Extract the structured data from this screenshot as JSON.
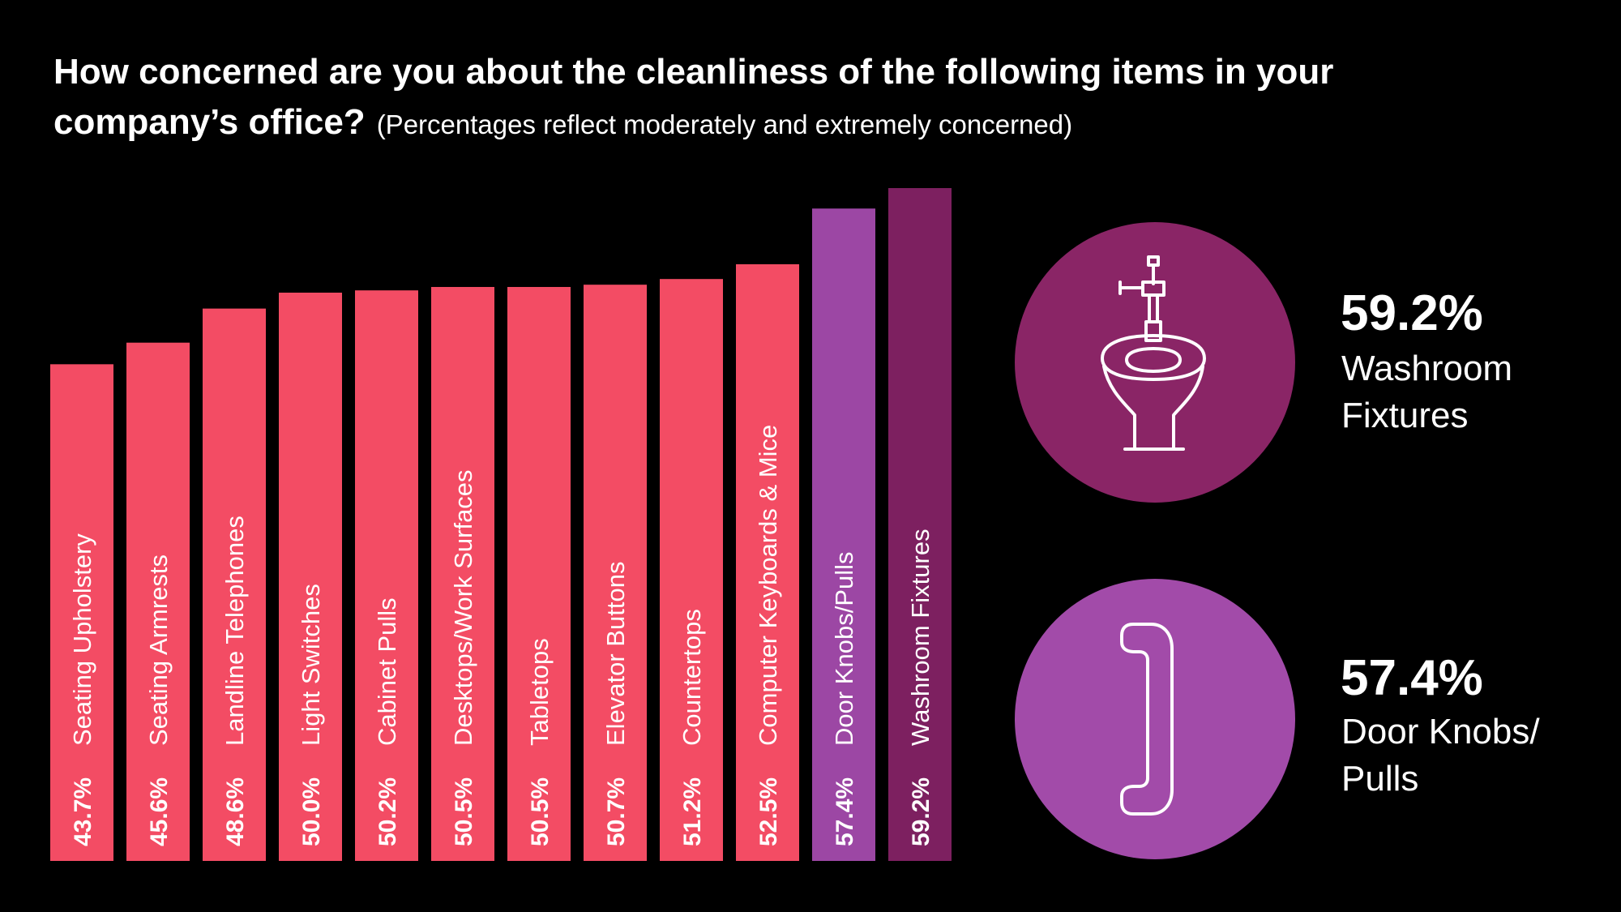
{
  "header": {
    "title": "How concerned are you about the cleanliness of the following items in your company’s office?",
    "subtitle": "(Percentages reflect moderately and extremely concerned)"
  },
  "colors": {
    "background": "#000000",
    "bar_default": "#f34c64",
    "bar_door": "#9c47a4",
    "bar_washroom": "#7d2060",
    "circle_washroom": "#8a2566",
    "circle_door": "#a24ba9"
  },
  "chart_data": {
    "type": "bar",
    "title": "How concerned are you about the cleanliness of the following items in your company’s office?",
    "subtitle": "(Percentages reflect moderately and extremely concerned)",
    "categories": [
      "Seating Upholstery",
      "Seating Armrests",
      "Landline Telephones",
      "Light Switches",
      "Cabinet Pulls",
      "Desktops/Work Surfaces",
      "Tabletops",
      "Elevator Buttons",
      "Countertops",
      "Computer Keyboards & Mice",
      "Door Knobs/Pulls",
      "Washroom Fixtures"
    ],
    "values": [
      43.7,
      45.6,
      48.6,
      50.0,
      50.2,
      50.5,
      50.5,
      50.7,
      51.2,
      52.5,
      57.4,
      59.2
    ],
    "value_labels": [
      "43.7%",
      "45.6%",
      "48.6%",
      "50.0%",
      "50.2%",
      "50.5%",
      "50.5%",
      "50.7%",
      "51.2%",
      "52.5%",
      "57.4%",
      "59.2%"
    ],
    "bar_colors": [
      "#f34c64",
      "#f34c64",
      "#f34c64",
      "#f34c64",
      "#f34c64",
      "#f34c64",
      "#f34c64",
      "#f34c64",
      "#f34c64",
      "#f34c64",
      "#9c47a4",
      "#7d2060"
    ],
    "ylim": [
      0,
      59.2
    ],
    "grid": false,
    "legend": "none"
  },
  "callouts": [
    {
      "value": "59.2%",
      "label": "Washroom Fixtures",
      "icon": "toilet-icon",
      "color": "#8a2566"
    },
    {
      "value": "57.4%",
      "label": "Door Knobs/ Pulls",
      "icon": "door-pull-icon",
      "color": "#a24ba9"
    }
  ]
}
